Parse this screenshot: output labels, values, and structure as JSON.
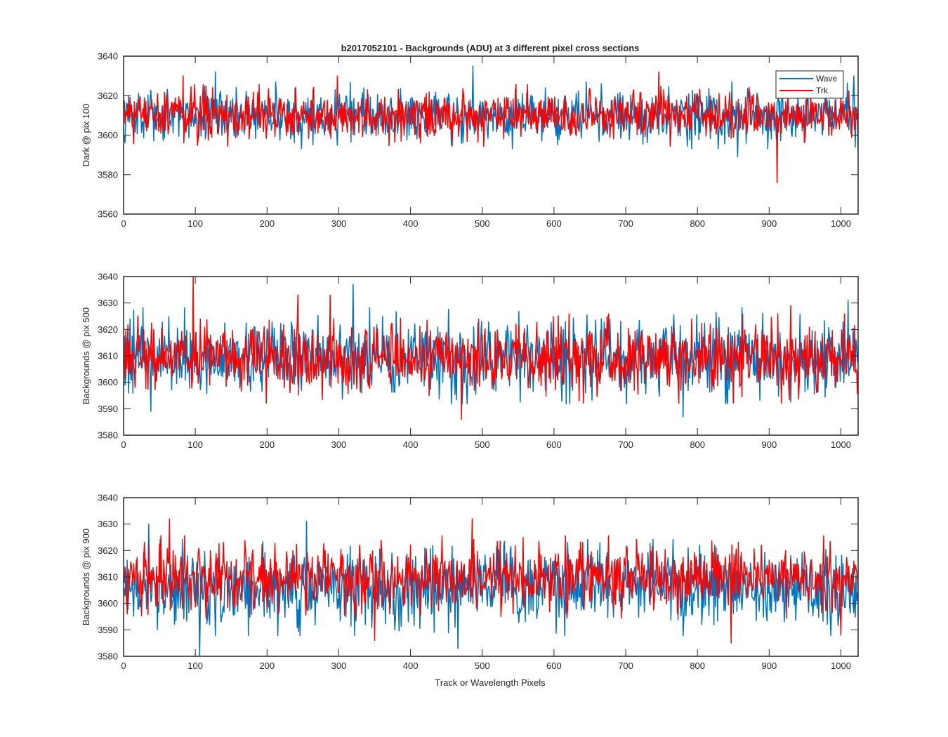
{
  "figure": {
    "title": "b2017052101 - Backgrounds (ADU) at 3 different pixel cross sections",
    "xlabel": "Track or Wavelength Pixels"
  },
  "legend": {
    "entries": [
      {
        "label": "Wave",
        "color": "#0072BD"
      },
      {
        "label": "Trk",
        "color": "#FF0000"
      }
    ],
    "placement": "top-right (first panel)"
  },
  "chart_data": [
    {
      "type": "line",
      "title": "b2017052101 - Backgrounds (ADU) at 3 different pixel cross sections",
      "xlabel": "",
      "ylabel": "Dark @ pix 100",
      "xlim": [
        0,
        1024
      ],
      "ylim": [
        3560,
        3640
      ],
      "xticks": [
        0,
        100,
        200,
        300,
        400,
        500,
        600,
        700,
        800,
        900,
        1000
      ],
      "yticks": [
        3560,
        3580,
        3600,
        3620,
        3640
      ],
      "grid": false,
      "series": [
        {
          "name": "Wave",
          "color": "#0072BD",
          "x_start": 1,
          "x_end": 1024,
          "n_points": 1024,
          "mean": 3610,
          "std": 6.5,
          "min": 3589,
          "max": 3635,
          "features": [
            {
              "x": 128,
              "y": 3632
            },
            {
              "x": 487,
              "y": 3635
            },
            {
              "x": 856,
              "y": 3589
            },
            {
              "x": 1018,
              "y": 3630
            }
          ]
        },
        {
          "name": "Trk",
          "color": "#FF0000",
          "x_start": 1,
          "x_end": 1024,
          "n_points": 1024,
          "mean": 3610,
          "std": 6.0,
          "min": 3576,
          "max": 3632,
          "features": [
            {
              "x": 83,
              "y": 3630
            },
            {
              "x": 298,
              "y": 3630
            },
            {
              "x": 746,
              "y": 3632
            },
            {
              "x": 911,
              "y": 3576
            },
            {
              "x": 1024,
              "y": 3592
            }
          ]
        }
      ]
    },
    {
      "type": "line",
      "title": "",
      "xlabel": "",
      "ylabel": "Backgrounds @ pix 500",
      "xlim": [
        0,
        1024
      ],
      "ylim": [
        3580,
        3640
      ],
      "xticks": [
        0,
        100,
        200,
        300,
        400,
        500,
        600,
        700,
        800,
        900,
        1000
      ],
      "yticks": [
        3580,
        3590,
        3600,
        3610,
        3620,
        3630,
        3640
      ],
      "grid": false,
      "series": [
        {
          "name": "Wave",
          "color": "#0072BD",
          "x_start": 1,
          "x_end": 1024,
          "n_points": 1024,
          "mean": 3610,
          "std": 7.0,
          "min": 3587,
          "max": 3637,
          "features": [
            {
              "x": 320,
              "y": 3637
            },
            {
              "x": 38,
              "y": 3589
            },
            {
              "x": 780,
              "y": 3587
            },
            {
              "x": 1010,
              "y": 3631
            }
          ]
        },
        {
          "name": "Trk",
          "color": "#FF0000",
          "x_start": 1,
          "x_end": 1024,
          "n_points": 1024,
          "mean": 3609,
          "std": 6.5,
          "min": 3586,
          "max": 3640,
          "features": [
            {
              "x": 97,
              "y": 3640
            },
            {
              "x": 243,
              "y": 3633
            },
            {
              "x": 288,
              "y": 3633
            },
            {
              "x": 471,
              "y": 3586
            },
            {
              "x": 930,
              "y": 3629
            }
          ]
        }
      ]
    },
    {
      "type": "line",
      "title": "",
      "xlabel": "Track or Wavelength Pixels",
      "ylabel": "Backgrounds @ pix 900",
      "xlim": [
        0,
        1024
      ],
      "ylim": [
        3580,
        3640
      ],
      "xticks": [
        0,
        100,
        200,
        300,
        400,
        500,
        600,
        700,
        800,
        900,
        1000
      ],
      "yticks": [
        3580,
        3590,
        3600,
        3610,
        3620,
        3630,
        3640
      ],
      "grid": false,
      "series": [
        {
          "name": "Wave",
          "color": "#0072BD",
          "x_start": 1,
          "x_end": 1024,
          "n_points": 1024,
          "mean": 3606,
          "std": 7.0,
          "min": 3580,
          "max": 3631,
          "features": [
            {
              "x": 106,
              "y": 3580
            },
            {
              "x": 35,
              "y": 3630
            },
            {
              "x": 255,
              "y": 3631
            },
            {
              "x": 466,
              "y": 3583
            }
          ]
        },
        {
          "name": "Trk",
          "color": "#FF0000",
          "x_start": 1,
          "x_end": 1024,
          "n_points": 1024,
          "mean": 3610,
          "std": 6.0,
          "min": 3585,
          "max": 3632,
          "features": [
            {
              "x": 64,
              "y": 3632
            },
            {
              "x": 486,
              "y": 3632
            },
            {
              "x": 350,
              "y": 3586
            },
            {
              "x": 847,
              "y": 3585
            },
            {
              "x": 1000,
              "y": 3588
            }
          ]
        }
      ]
    }
  ]
}
